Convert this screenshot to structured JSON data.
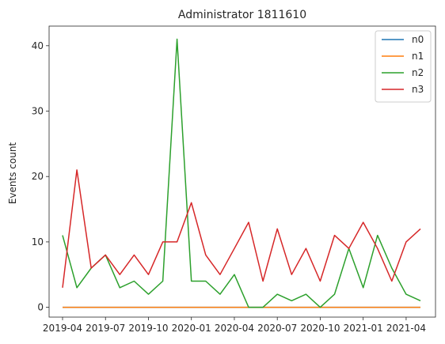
{
  "chart_data": {
    "type": "line",
    "title": "Administrator 1811610",
    "xlabel": "",
    "ylabel": "Events count",
    "x": [
      "2019-04",
      "2019-05",
      "2019-06",
      "2019-07",
      "2019-08",
      "2019-09",
      "2019-10",
      "2019-11",
      "2019-12",
      "2020-01",
      "2020-02",
      "2020-03",
      "2020-04",
      "2020-05",
      "2020-06",
      "2020-07",
      "2020-08",
      "2020-09",
      "2020-10",
      "2020-11",
      "2020-12",
      "2021-01",
      "2021-02",
      "2021-03",
      "2021-04",
      "2021-05"
    ],
    "x_ticks": [
      "2019-04",
      "2019-07",
      "2019-10",
      "2020-01",
      "2020-04",
      "2020-07",
      "2020-10",
      "2021-01",
      "2021-04"
    ],
    "ylim": [
      -1.5,
      43
    ],
    "y_ticks": [
      0,
      10,
      20,
      30,
      40
    ],
    "legend_position": "top-right",
    "series": [
      {
        "name": "n0",
        "color": "#1f77b4",
        "values": [
          0,
          0,
          0,
          0,
          0,
          0,
          0,
          0,
          0,
          0,
          0,
          0,
          0,
          0,
          0,
          0,
          0,
          0,
          0,
          0,
          0,
          0,
          0,
          0,
          0,
          0
        ]
      },
      {
        "name": "n1",
        "color": "#ff7f0e",
        "values": [
          0,
          0,
          0,
          0,
          0,
          0,
          0,
          0,
          0,
          0,
          0,
          0,
          0,
          0,
          0,
          0,
          0,
          0,
          0,
          0,
          0,
          0,
          0,
          0,
          0,
          0
        ]
      },
      {
        "name": "n2",
        "color": "#2ca02c",
        "values": [
          11,
          3,
          6,
          8,
          3,
          4,
          2,
          4,
          41,
          4,
          4,
          2,
          5,
          0,
          0,
          2,
          1,
          2,
          0,
          2,
          9,
          3,
          11,
          6,
          2,
          1
        ]
      },
      {
        "name": "n3",
        "color": "#d62728",
        "values": [
          3,
          21,
          6,
          8,
          5,
          8,
          5,
          10,
          10,
          16,
          8,
          5,
          9,
          13,
          4,
          12,
          5,
          9,
          4,
          11,
          9,
          13,
          9,
          4,
          10,
          12
        ]
      }
    ]
  }
}
